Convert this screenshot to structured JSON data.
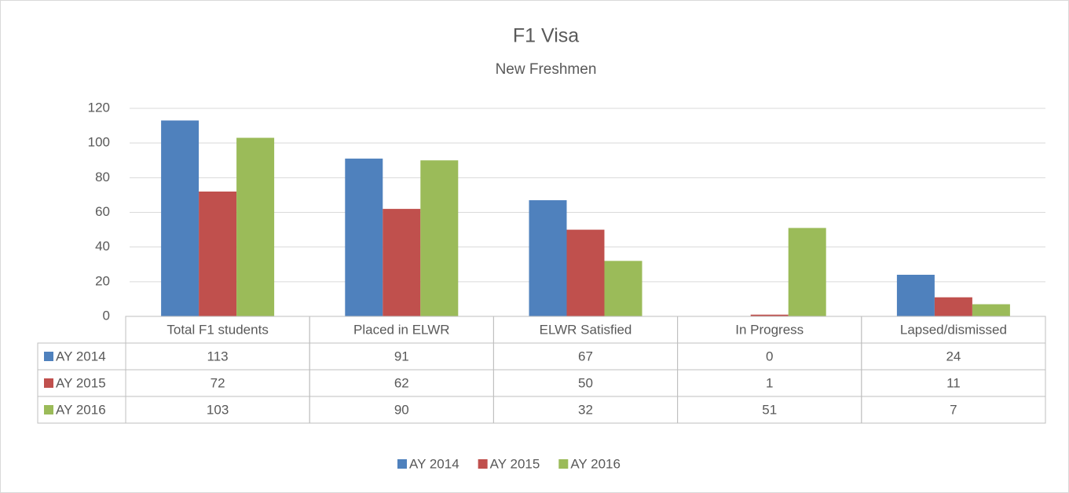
{
  "chart_data": {
    "type": "bar",
    "title": "F1 Visa",
    "subtitle": "New Freshmen",
    "categories": [
      "Total F1 students",
      "Placed in ELWR",
      "ELWR Satisfied",
      "In Progress",
      "Lapsed/dismissed"
    ],
    "series": [
      {
        "name": "AY 2014",
        "color": "#4f81bd",
        "values": [
          113,
          91,
          67,
          0,
          24
        ]
      },
      {
        "name": "AY 2015",
        "color": "#c0504d",
        "values": [
          72,
          62,
          50,
          1,
          11
        ]
      },
      {
        "name": "AY 2016",
        "color": "#9bbb59",
        "values": [
          103,
          90,
          32,
          51,
          7
        ]
      }
    ],
    "ylim": [
      0,
      120
    ],
    "yticks": [
      0,
      20,
      40,
      60,
      80,
      100,
      120
    ],
    "grid": true,
    "legend": "bottom",
    "data_table": true
  }
}
